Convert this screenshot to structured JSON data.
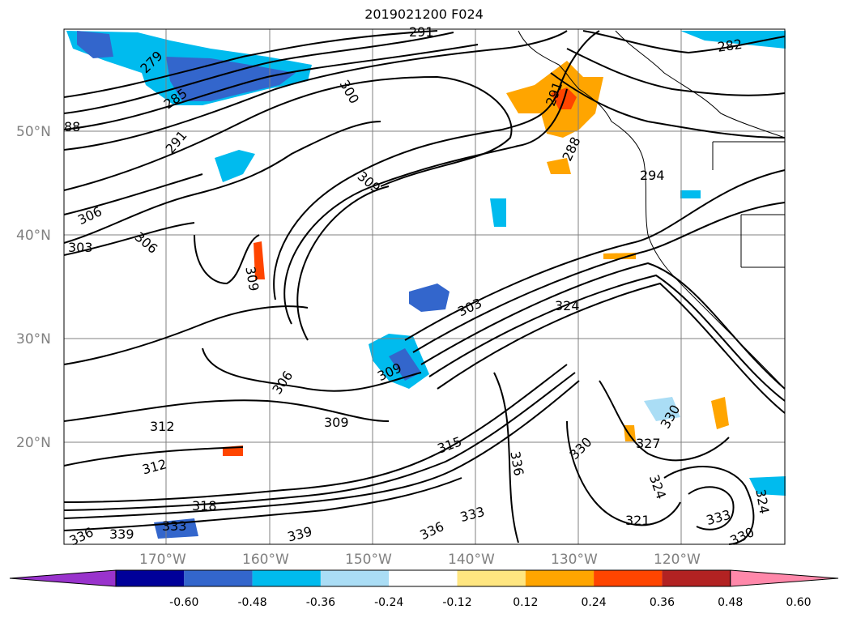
{
  "title": "2019021200 F024",
  "colors": {
    "background": "#ffffff",
    "grid": "#808080",
    "contour": "#000000",
    "coast": "#000000"
  },
  "map": {
    "lat_labels": [
      "50°N",
      "40°N",
      "30°N",
      "20°N"
    ],
    "lon_labels": [
      "170°W",
      "160°W",
      "150°W",
      "140°W",
      "130°W",
      "120°W"
    ]
  },
  "contour_labels": [
    "279",
    "285",
    "291",
    "300",
    "309",
    "306",
    "303",
    "306",
    "309",
    "306",
    "309",
    "303",
    "309",
    "312",
    "312",
    "309",
    "315",
    "318",
    "333",
    "336",
    "339",
    "339",
    "336",
    "333",
    "336",
    "330",
    "327",
    "330",
    "324",
    "324",
    "321",
    "333",
    "330",
    "324",
    "288",
    "282",
    "294",
    "291",
    "88",
    "291"
  ],
  "colorbar": {
    "colors": [
      "#9933cc",
      "#000099",
      "#3366cc",
      "#00bbee",
      "#aaddf5",
      "#ffffff",
      "#ffe680",
      "#ffa500",
      "#ff4500",
      "#b22222",
      "#ff88aa"
    ],
    "labels": [
      "-0.60",
      "-0.48",
      "-0.36",
      "-0.24",
      "-0.12",
      "0.12",
      "0.24",
      "0.36",
      "0.48",
      "0.60"
    ]
  }
}
